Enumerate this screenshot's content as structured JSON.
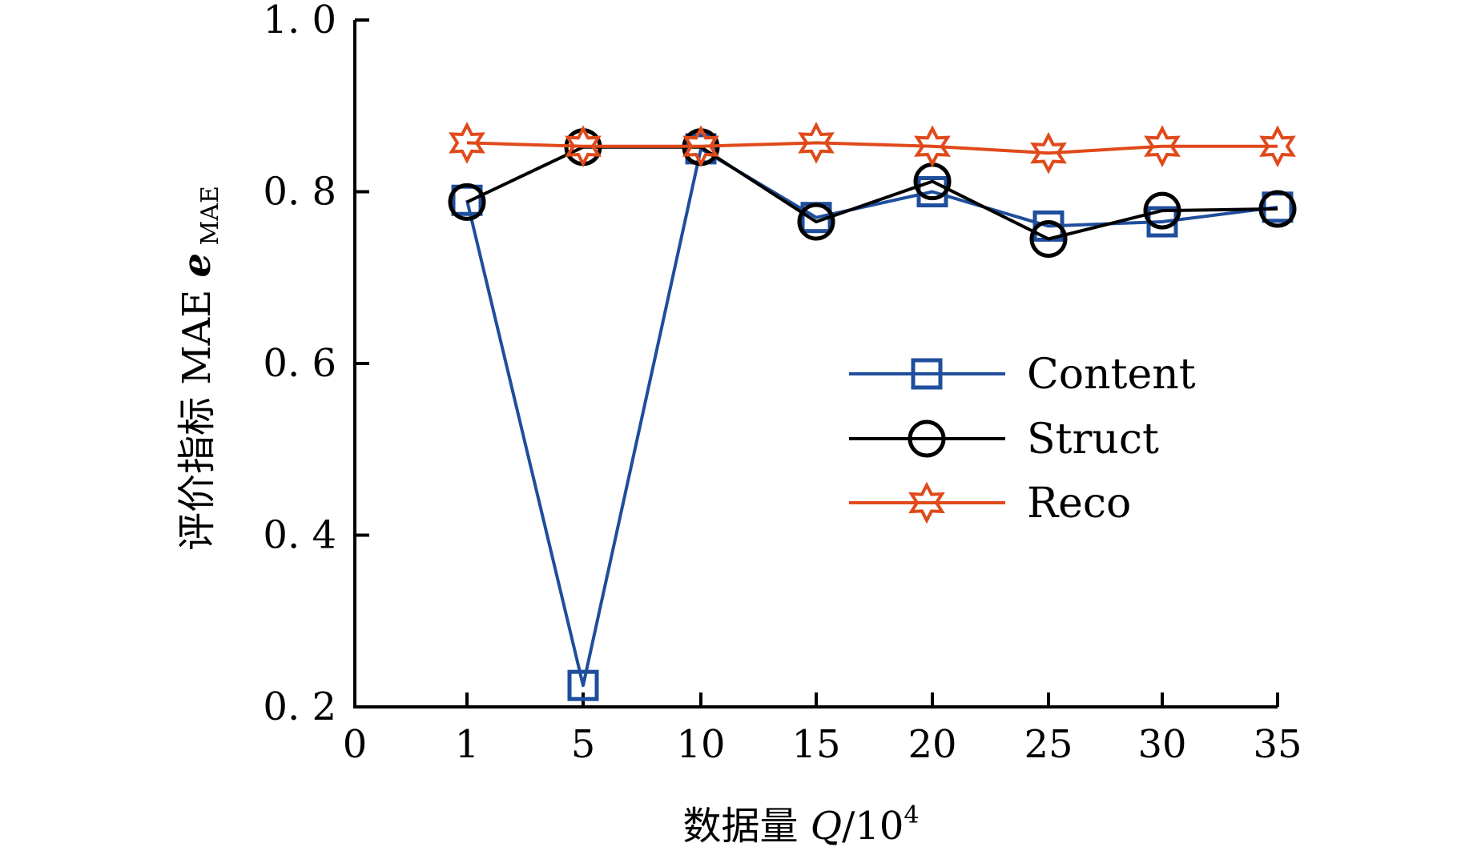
{
  "chart_data": {
    "type": "line",
    "categories": [
      "1",
      "5",
      "10",
      "15",
      "20",
      "25",
      "30",
      "35"
    ],
    "x_ticks": [
      "0",
      "1",
      "5",
      "10",
      "15",
      "20",
      "25",
      "30",
      "35"
    ],
    "y_ticks": [
      "0. 2",
      "0. 4",
      "0. 6",
      "0. 8",
      "1. 0"
    ],
    "ylim": [
      0.2,
      1.0
    ],
    "xlabel": "数据量 Q/10⁴",
    "ylabel": "评价指标 MAE e MAE",
    "legend_position": "center-right",
    "grid": false,
    "series": [
      {
        "name": "Content",
        "marker": "square",
        "color": "#1f4e9c",
        "values": [
          0.79,
          0.225,
          0.85,
          0.77,
          0.8,
          0.76,
          0.765,
          0.782
        ]
      },
      {
        "name": "Struct",
        "marker": "circle",
        "color": "#000000",
        "values": [
          0.788,
          0.852,
          0.852,
          0.765,
          0.812,
          0.745,
          0.778,
          0.78
        ]
      },
      {
        "name": "Reco",
        "marker": "star",
        "color": "#e04a1a",
        "values": [
          0.857,
          0.853,
          0.853,
          0.857,
          0.853,
          0.845,
          0.853,
          0.853
        ]
      }
    ]
  }
}
